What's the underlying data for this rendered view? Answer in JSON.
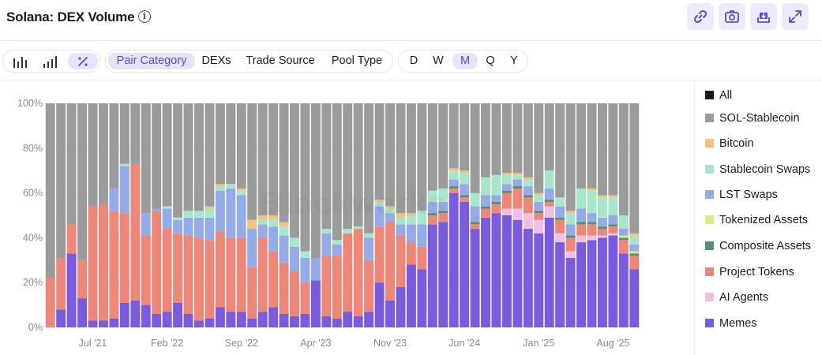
{
  "header": {
    "title": "Solana: DEX Volume",
    "buttons": [
      {
        "name": "copy-link-button",
        "icon": "link-icon"
      },
      {
        "name": "screenshot-button",
        "icon": "camera-icon"
      },
      {
        "name": "download-button",
        "icon": "download-tray-icon"
      },
      {
        "name": "expand-button",
        "icon": "expand-icon"
      }
    ]
  },
  "toolbar": {
    "chart_modes": [
      "bar-chart-icon",
      "stacked-bar-icon",
      "percent-icon"
    ],
    "active_mode": "percent-icon",
    "breakdowns": [
      "Pair Category",
      "DEXs",
      "Trade Source",
      "Pool Type"
    ],
    "active_breakdown": "Pair Category",
    "intervals": [
      "D",
      "W",
      "M",
      "Q",
      "Y"
    ],
    "active_interval": "M"
  },
  "watermark": "Blockworks",
  "colors": {
    "All": "#1a1a1a",
    "SOL-Stablecoin": "#9b9b9b",
    "Bitcoin": "#f0c27a",
    "Stablecoin Swaps": "#a8e6cc",
    "LST Swaps": "#93abe8",
    "Tokenized Assets": "#d9ea84",
    "Composite Assets": "#4f9170",
    "Project Tokens": "#ee8777",
    "AI Agents": "#f1bfe3",
    "Memes": "#7a5be0"
  },
  "chart_data": {
    "type": "bar",
    "stacked": true,
    "percent": true,
    "ylim": [
      0,
      100
    ],
    "yticks": [
      "0%",
      "20%",
      "40%",
      "60%",
      "80%",
      "100%"
    ],
    "xtick_labels": [
      "Jul '21",
      "Feb '22",
      "Sep '22",
      "Apr '23",
      "Nov '23",
      "Jun '24",
      "Jan '25",
      "Aug '25"
    ],
    "xtick_index": [
      4,
      11,
      18,
      25,
      32,
      39,
      46,
      53
    ],
    "legend": [
      "All",
      "SOL-Stablecoin",
      "Bitcoin",
      "Stablecoin Swaps",
      "LST Swaps",
      "Tokenized Assets",
      "Composite Assets",
      "Project Tokens",
      "AI Agents",
      "Memes"
    ],
    "legend_position": "right",
    "grid": true,
    "stack_order": [
      "Memes",
      "AI Agents",
      "Project Tokens",
      "Composite Assets",
      "Tokenized Assets",
      "LST Swaps",
      "Stablecoin Swaps",
      "Bitcoin",
      "SOL-Stablecoin"
    ],
    "series": [
      {
        "name": "Memes",
        "values": [
          0,
          8,
          33,
          13,
          3,
          3,
          4,
          11,
          12,
          10,
          6,
          7,
          11,
          6,
          3,
          4,
          9,
          7,
          7,
          4,
          7,
          9,
          6,
          5,
          6,
          21,
          5,
          4,
          7,
          5,
          7,
          20,
          12,
          18,
          28,
          26,
          46,
          47,
          60,
          56,
          44,
          49,
          51,
          50,
          48,
          44,
          42,
          49,
          38,
          31,
          38,
          39,
          40,
          41,
          33,
          26
        ]
      },
      {
        "name": "AI Agents",
        "values": [
          0,
          0,
          0,
          0,
          0,
          0,
          0,
          0,
          0,
          0,
          0,
          0,
          0,
          0,
          0,
          0,
          0,
          0,
          0,
          0,
          0,
          0,
          0,
          0,
          0,
          0,
          0,
          0,
          0,
          0,
          0,
          0,
          0,
          0,
          0,
          0,
          0,
          0,
          0,
          0,
          0,
          0,
          0,
          3,
          5,
          7,
          6,
          5,
          4,
          3,
          3,
          2,
          1,
          1,
          0,
          0
        ]
      },
      {
        "name": "Project Tokens",
        "values": [
          22,
          23,
          13,
          17,
          51,
          52,
          48,
          40,
          61,
          31,
          46,
          37,
          31,
          35,
          37,
          35,
          34,
          33,
          33,
          23,
          33,
          25,
          23,
          20,
          14,
          0,
          27,
          28,
          35,
          39,
          23,
          25,
          35,
          23,
          10,
          10,
          4,
          4,
          2,
          2,
          2,
          4,
          4,
          7,
          9,
          7,
          3,
          2,
          6,
          6,
          5,
          5,
          3,
          3,
          6,
          6
        ]
      },
      {
        "name": "Composite Assets",
        "values": [
          0,
          0,
          0,
          0,
          0,
          0,
          0,
          0,
          0,
          0,
          0,
          0,
          0,
          0,
          0,
          0,
          0,
          0,
          0,
          0,
          0,
          0,
          0,
          0,
          0,
          0,
          0,
          0,
          0,
          0,
          0,
          0,
          0,
          0,
          0,
          0,
          1,
          1,
          1,
          1,
          1,
          1,
          1,
          1,
          1,
          1,
          1,
          1,
          1,
          1,
          1,
          1,
          1,
          1,
          1,
          1
        ]
      },
      {
        "name": "Tokenized Assets",
        "values": [
          0,
          0,
          0,
          0,
          0,
          0,
          0,
          0,
          0,
          0,
          0,
          0,
          0,
          0,
          0,
          0,
          0,
          0,
          0,
          0,
          0,
          0,
          0,
          0,
          0,
          0,
          0,
          0,
          0,
          0,
          0,
          0,
          0,
          0,
          0,
          0,
          0,
          0,
          0,
          0,
          0,
          0,
          0,
          0,
          0,
          0,
          0,
          0,
          0,
          0,
          0,
          0,
          0,
          0,
          1,
          1
        ]
      },
      {
        "name": "LST Swaps",
        "values": [
          0,
          0,
          0,
          0,
          0,
          0,
          10,
          21,
          0,
          10,
          1,
          9,
          6,
          8,
          9,
          10,
          18,
          22,
          19,
          17,
          6,
          11,
          12,
          11,
          11,
          10,
          10,
          5,
          0,
          0,
          10,
          9,
          4,
          5,
          8,
          10,
          5,
          4,
          3,
          5,
          7,
          5,
          3,
          3,
          3,
          4,
          4,
          5,
          5,
          5,
          6,
          4,
          4,
          4,
          3,
          3
        ]
      },
      {
        "name": "Stablecoin Swaps",
        "values": [
          0,
          0,
          0,
          0,
          0,
          0,
          0,
          1,
          0,
          0,
          0,
          1,
          1,
          3,
          3,
          4,
          2,
          2,
          2,
          0,
          2,
          3,
          4,
          4,
          3,
          0,
          2,
          2,
          2,
          1,
          2,
          2,
          2,
          3,
          4,
          6,
          5,
          6,
          4,
          5,
          6,
          8,
          9,
          4,
          2,
          3,
          3,
          8,
          4,
          5,
          9,
          10,
          9,
          8,
          6,
          4
        ]
      },
      {
        "name": "Bitcoin",
        "values": [
          0,
          0,
          0,
          0,
          0,
          0,
          0,
          0,
          0,
          0,
          0,
          0,
          0,
          0,
          0,
          1,
          1,
          0,
          1,
          4,
          2,
          2,
          2,
          0,
          0,
          0,
          0,
          0,
          0,
          0,
          0,
          1,
          1,
          2,
          1,
          0,
          0,
          0,
          1,
          1,
          0,
          0,
          0,
          1,
          1,
          1,
          1,
          0,
          0,
          1,
          0,
          1,
          1,
          1,
          0,
          1
        ]
      },
      {
        "name": "SOL-Stablecoin",
        "values": [
          78,
          69,
          54,
          70,
          46,
          45,
          38,
          27,
          27,
          49,
          47,
          46,
          51,
          48,
          48,
          46,
          36,
          36,
          38,
          52,
          50,
          50,
          53,
          60,
          66,
          69,
          56,
          61,
          56,
          55,
          58,
          43,
          46,
          49,
          49,
          48,
          39,
          38,
          29,
          30,
          40,
          33,
          32,
          31,
          31,
          33,
          40,
          30,
          42,
          48,
          38,
          38,
          41,
          41,
          50,
          58
        ]
      }
    ]
  }
}
